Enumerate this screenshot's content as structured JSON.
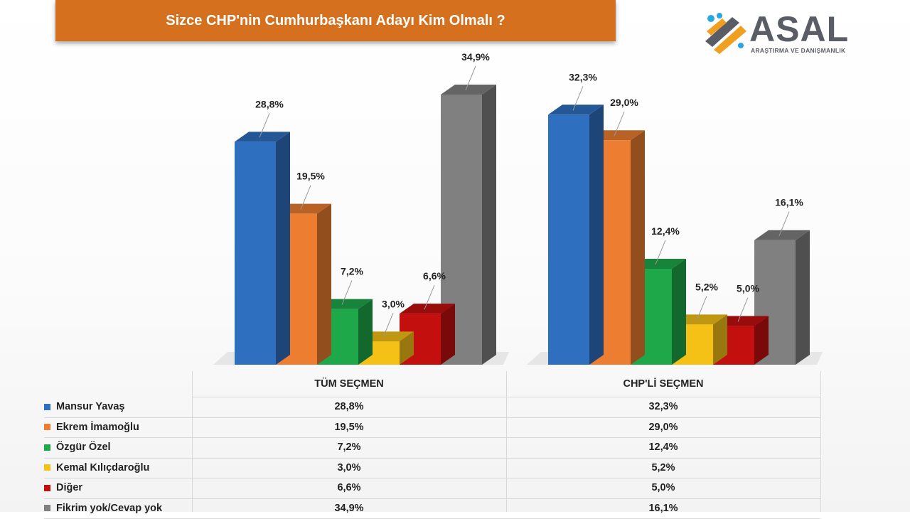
{
  "title": "Sizce CHP'nin Cumhurbaşkanı Adayı Kim Olmalı ?",
  "logo": {
    "name": "ASAL",
    "subtitle": "ARAŞTIRMA VE DANIŞMANLIK"
  },
  "chart_data": {
    "type": "bar",
    "title": "Sizce CHP'nin Cumhurbaşkanı Adayı Kim Olmalı ?",
    "groups": [
      "TÜM SEÇMEN",
      "CHP'Lİ SEÇMEN"
    ],
    "series": [
      {
        "name": "Mansur Yavaş",
        "color": "#2e6fc0",
        "values": [
          28.8,
          32.3
        ],
        "labels": [
          "28,8%",
          "32,3%"
        ]
      },
      {
        "name": "Ekrem İmamoğlu",
        "color": "#ed7d31",
        "values": [
          19.5,
          29.0
        ],
        "labels": [
          "19,5%",
          "29,0%"
        ]
      },
      {
        "name": "Özgür Özel",
        "color": "#1fa84a",
        "values": [
          7.2,
          12.4
        ],
        "labels": [
          "7,2%",
          "12,4%"
        ]
      },
      {
        "name": "Kemal Kılıçdaroğlu",
        "color": "#f5c116",
        "values": [
          3.0,
          5.2
        ],
        "labels": [
          "3,0%",
          "5,2%"
        ]
      },
      {
        "name": "Diğer",
        "color": "#c40f0f",
        "values": [
          6.6,
          5.0
        ],
        "labels": [
          "6,6%",
          "5,0%"
        ]
      },
      {
        "name": "Fikrim yok/Cevap yok",
        "color": "#808080",
        "values": [
          34.9,
          16.1
        ],
        "labels": [
          "34,9%",
          "16,1%"
        ]
      }
    ],
    "ylim": [
      0,
      34.9
    ],
    "grid": false,
    "legend": "table-below"
  }
}
